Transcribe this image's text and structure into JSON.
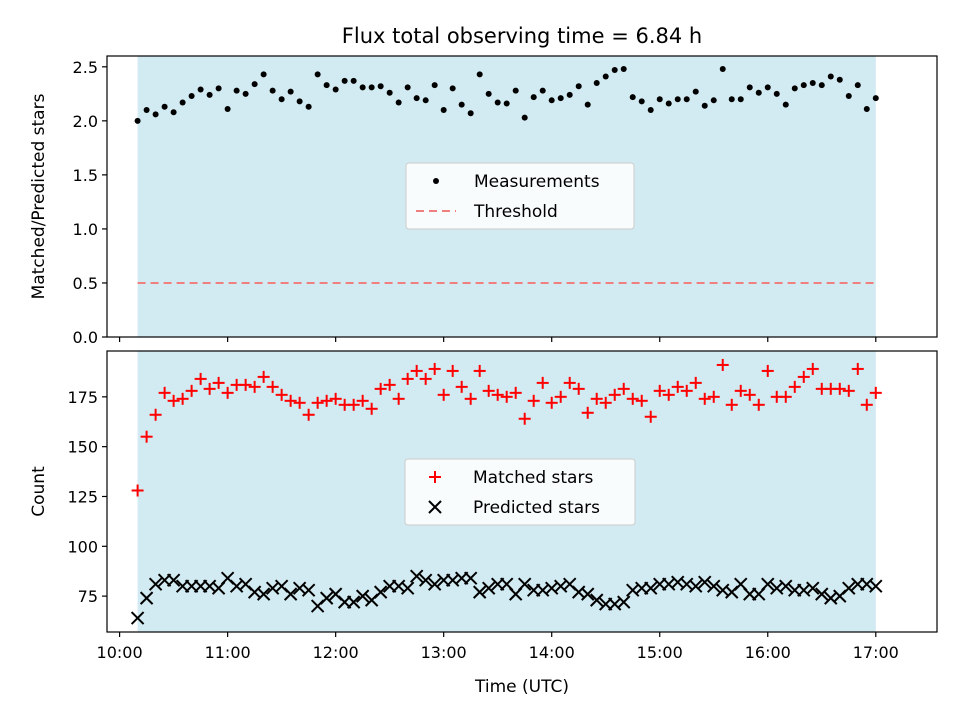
{
  "title": "Flux total observing time = 6.84 h",
  "chart_data": [
    {
      "type": "scatter",
      "panel": "top",
      "ylabel": "Matched/Predicted stars",
      "xlabel": "",
      "ylim": [
        0,
        2.6
      ],
      "xlim": [
        "09:53",
        "17:34"
      ],
      "yticks": [
        0.0,
        0.5,
        1.0,
        1.5,
        2.0,
        2.5
      ],
      "ytick_labels": [
        "0.0",
        "0.5",
        "1.0",
        "1.5",
        "2.0",
        "2.5"
      ],
      "shaded_span": [
        "10:10",
        "17:00"
      ],
      "shade_color": "#add8e6",
      "legend_position": "center",
      "threshold": {
        "name": "Threshold",
        "value": 0.5,
        "color": "#f08080",
        "style": "dashed"
      },
      "series": [
        {
          "name": "Measurements",
          "marker": "dot",
          "color": "#000000",
          "x": [
            "10:10",
            "10:15",
            "10:20",
            "10:25",
            "10:30",
            "10:35",
            "10:40",
            "10:45",
            "10:50",
            "10:55",
            "11:00",
            "11:05",
            "11:10",
            "11:15",
            "11:20",
            "11:25",
            "11:30",
            "11:35",
            "11:40",
            "11:45",
            "11:50",
            "11:55",
            "12:00",
            "12:05",
            "12:10",
            "12:15",
            "12:20",
            "12:25",
            "12:30",
            "12:35",
            "12:40",
            "12:45",
            "12:50",
            "12:55",
            "13:00",
            "13:05",
            "13:10",
            "13:15",
            "13:20",
            "13:25",
            "13:30",
            "13:35",
            "13:40",
            "13:45",
            "13:50",
            "13:55",
            "14:00",
            "14:05",
            "14:10",
            "14:15",
            "14:20",
            "14:25",
            "14:30",
            "14:35",
            "14:40",
            "14:45",
            "14:50",
            "14:55",
            "15:00",
            "15:05",
            "15:10",
            "15:15",
            "15:20",
            "15:25",
            "15:30",
            "15:35",
            "15:40",
            "15:45",
            "15:50",
            "15:55",
            "16:00",
            "16:05",
            "16:10",
            "16:15",
            "16:20",
            "16:25",
            "16:30",
            "16:35",
            "16:40",
            "16:45",
            "16:50",
            "16:55",
            "17:00"
          ],
          "y": [
            2.0,
            2.1,
            2.06,
            2.13,
            2.08,
            2.17,
            2.23,
            2.29,
            2.24,
            2.3,
            2.11,
            2.28,
            2.25,
            2.34,
            2.43,
            2.28,
            2.2,
            2.27,
            2.18,
            2.13,
            2.43,
            2.33,
            2.29,
            2.37,
            2.37,
            2.31,
            2.31,
            2.32,
            2.26,
            2.17,
            2.31,
            2.21,
            2.19,
            2.33,
            2.1,
            2.3,
            2.15,
            2.07,
            2.43,
            2.25,
            2.17,
            2.16,
            2.28,
            2.03,
            2.22,
            2.28,
            2.19,
            2.21,
            2.24,
            2.32,
            2.15,
            2.35,
            2.41,
            2.47,
            2.48,
            2.22,
            2.18,
            2.1,
            2.2,
            2.16,
            2.2,
            2.2,
            2.27,
            2.14,
            2.19,
            2.48,
            2.2,
            2.2,
            2.31,
            2.26,
            2.31,
            2.25,
            2.15,
            2.3,
            2.33,
            2.35,
            2.33,
            2.41,
            2.38,
            2.23,
            2.33,
            2.11,
            2.21
          ]
        }
      ]
    },
    {
      "type": "scatter",
      "panel": "bottom",
      "ylabel": "Count",
      "xlabel": "Time (UTC)",
      "ylim": [
        57,
        198
      ],
      "xlim": [
        "09:53",
        "17:34"
      ],
      "yticks": [
        75,
        100,
        125,
        150,
        175
      ],
      "ytick_labels": [
        "75",
        "100",
        "125",
        "150",
        "175"
      ],
      "xticks": [
        "10:00",
        "11:00",
        "12:00",
        "13:00",
        "14:00",
        "15:00",
        "16:00",
        "17:00"
      ],
      "xtick_labels": [
        "10:00",
        "11:00",
        "12:00",
        "13:00",
        "14:00",
        "15:00",
        "16:00",
        "17:00"
      ],
      "shaded_span": [
        "10:10",
        "17:00"
      ],
      "shade_color": "#add8e6",
      "legend_position": "center",
      "series": [
        {
          "name": "Matched stars",
          "marker": "plus",
          "color": "#ff0000",
          "x": [
            "10:10",
            "10:15",
            "10:20",
            "10:25",
            "10:30",
            "10:35",
            "10:40",
            "10:45",
            "10:50",
            "10:55",
            "11:00",
            "11:05",
            "11:10",
            "11:15",
            "11:20",
            "11:25",
            "11:30",
            "11:35",
            "11:40",
            "11:45",
            "11:50",
            "11:55",
            "12:00",
            "12:05",
            "12:10",
            "12:15",
            "12:20",
            "12:25",
            "12:30",
            "12:35",
            "12:40",
            "12:45",
            "12:50",
            "12:55",
            "13:00",
            "13:05",
            "13:10",
            "13:15",
            "13:20",
            "13:25",
            "13:30",
            "13:35",
            "13:40",
            "13:45",
            "13:50",
            "13:55",
            "14:00",
            "14:05",
            "14:10",
            "14:15",
            "14:20",
            "14:25",
            "14:30",
            "14:35",
            "14:40",
            "14:45",
            "14:50",
            "14:55",
            "15:00",
            "15:05",
            "15:10",
            "15:15",
            "15:20",
            "15:25",
            "15:30",
            "15:35",
            "15:40",
            "15:45",
            "15:50",
            "15:55",
            "16:00",
            "16:05",
            "16:10",
            "16:15",
            "16:20",
            "16:25",
            "16:30",
            "16:35",
            "16:40",
            "16:45",
            "16:50",
            "16:55",
            "17:00"
          ],
          "y": [
            128,
            155,
            166,
            177,
            173,
            174,
            178,
            184,
            179,
            182,
            177,
            181,
            181,
            180,
            185,
            180,
            176,
            173,
            172,
            166,
            172,
            173,
            174,
            171,
            171,
            173,
            169,
            179,
            181,
            174,
            184,
            188,
            184,
            189,
            176,
            188,
            180,
            174,
            188,
            178,
            176,
            175,
            177,
            164,
            173,
            182,
            172,
            175,
            182,
            179,
            167,
            174,
            172,
            176,
            179,
            174,
            173,
            165,
            178,
            176,
            180,
            178,
            182,
            174,
            175,
            191,
            171,
            178,
            176,
            171,
            188,
            175,
            175,
            180,
            185,
            189,
            179,
            179,
            179,
            178,
            189,
            171,
            177
          ]
        },
        {
          "name": "Predicted stars",
          "marker": "x",
          "color": "#000000",
          "x": [
            "10:10",
            "10:15",
            "10:20",
            "10:25",
            "10:30",
            "10:35",
            "10:40",
            "10:45",
            "10:50",
            "10:55",
            "11:00",
            "11:05",
            "11:10",
            "11:15",
            "11:20",
            "11:25",
            "11:30",
            "11:35",
            "11:40",
            "11:45",
            "11:50",
            "11:55",
            "12:00",
            "12:05",
            "12:10",
            "12:15",
            "12:20",
            "12:25",
            "12:30",
            "12:35",
            "12:40",
            "12:45",
            "12:50",
            "12:55",
            "13:00",
            "13:05",
            "13:10",
            "13:15",
            "13:20",
            "13:25",
            "13:30",
            "13:35",
            "13:40",
            "13:45",
            "13:50",
            "13:55",
            "14:00",
            "14:05",
            "14:10",
            "14:15",
            "14:20",
            "14:25",
            "14:30",
            "14:35",
            "14:40",
            "14:45",
            "14:50",
            "14:55",
            "15:00",
            "15:05",
            "15:10",
            "15:15",
            "15:20",
            "15:25",
            "15:30",
            "15:35",
            "15:40",
            "15:45",
            "15:50",
            "15:55",
            "16:00",
            "16:05",
            "16:10",
            "16:15",
            "16:20",
            "16:25",
            "16:30",
            "16:35",
            "16:40",
            "16:45",
            "16:50",
            "16:55",
            "17:00"
          ],
          "y": [
            64,
            74,
            81,
            83,
            83,
            80,
            80,
            80,
            80,
            79,
            84,
            80,
            81,
            77,
            76,
            79,
            80,
            76,
            79,
            78,
            70,
            74,
            76,
            72,
            72,
            75,
            73,
            77,
            80,
            80,
            79,
            85,
            83,
            81,
            83,
            83,
            84,
            84,
            77,
            79,
            81,
            81,
            76,
            81,
            78,
            78,
            79,
            80,
            81,
            77,
            76,
            73,
            71,
            71,
            72,
            78,
            79,
            79,
            81,
            81,
            82,
            81,
            80,
            82,
            80,
            78,
            77,
            81,
            76,
            76,
            81,
            79,
            80,
            78,
            78,
            79,
            76,
            74,
            75,
            79,
            81,
            81,
            80
          ]
        }
      ]
    }
  ]
}
